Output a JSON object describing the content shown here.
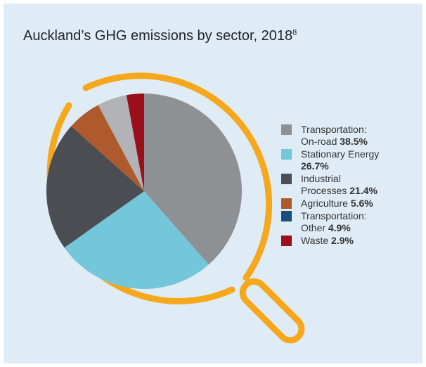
{
  "chart_data": {
    "type": "pie",
    "title": "Auckland’s GHG emissions by sector, 2018",
    "title_note": "8",
    "categories": [
      "Transportation: On-road",
      "Stationary Energy",
      "Industrial Processes",
      "Agriculture",
      "Transportation: Other",
      "Waste"
    ],
    "values": [
      38.5,
      26.7,
      21.4,
      5.6,
      4.9,
      2.9
    ],
    "value_labels": [
      "38.5%",
      "26.7%",
      "21.4%",
      "5.6%",
      "4.9%",
      "2.9%"
    ],
    "colors": [
      "#8e9193",
      "#74c6da",
      "#4a4e53",
      "#ae5a2c",
      "#b1b3b6",
      "#9a0f1a"
    ],
    "legend_colors": [
      "#8e9193",
      "#74c6da",
      "#4a4e53",
      "#ae5a2c",
      "#174d7c",
      "#9a0f1a"
    ]
  }
}
